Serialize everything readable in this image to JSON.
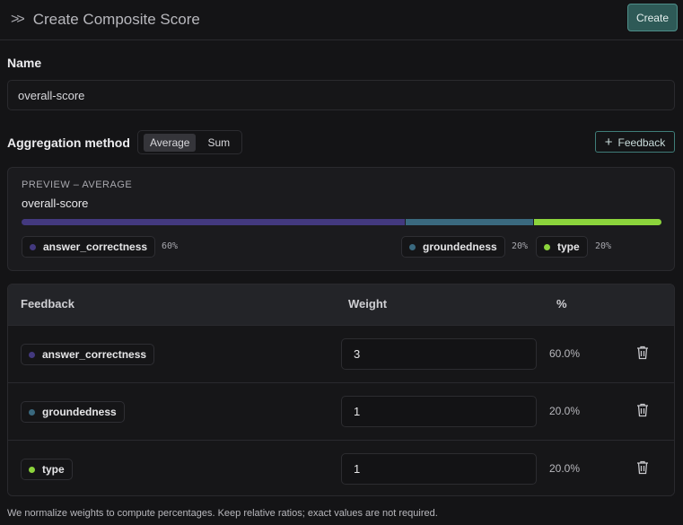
{
  "header": {
    "title": "Create Composite Score",
    "create_label": "Create"
  },
  "name": {
    "label": "Name",
    "value": "overall-score"
  },
  "aggregation": {
    "label": "Aggregation method",
    "options": [
      "Average",
      "Sum"
    ],
    "selected": "Average",
    "add_feedback_label": "Feedback"
  },
  "preview": {
    "caption": "PREVIEW – AVERAGE",
    "name": "overall-score",
    "items": [
      {
        "label": "answer_correctness",
        "pct": "60%",
        "value": 60,
        "color": "#43397f"
      },
      {
        "label": "groundedness",
        "pct": "20%",
        "value": 20,
        "color": "#3a697f"
      },
      {
        "label": "type",
        "pct": "20%",
        "value": 20,
        "color": "#8cd43c"
      }
    ]
  },
  "table": {
    "headers": [
      "Feedback",
      "Weight",
      "%"
    ],
    "rows": [
      {
        "label": "answer_correctness",
        "weight": "3",
        "pct": "60.0%",
        "color": "#43397f"
      },
      {
        "label": "groundedness",
        "weight": "1",
        "pct": "20.0%",
        "color": "#3a697f"
      },
      {
        "label": "type",
        "weight": "1",
        "pct": "20.0%",
        "color": "#8cd43c"
      }
    ]
  },
  "footer": "We normalize weights to compute percentages. Keep relative ratios; exact values are not required."
}
